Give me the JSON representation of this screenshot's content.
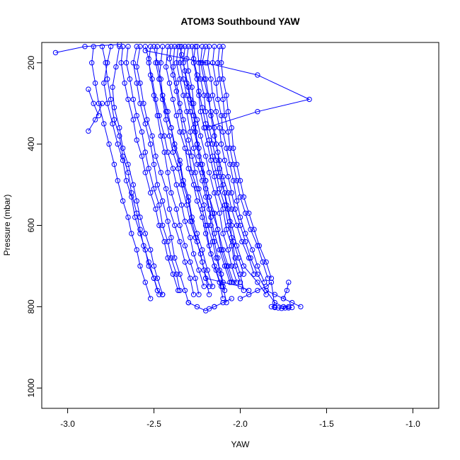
{
  "chart_data": {
    "type": "scatter",
    "title": "ATOM3 Southbound YAW",
    "xlabel": "YAW",
    "ylabel": "Pressure (mbar)",
    "xlim": [
      -3.15,
      -0.85
    ],
    "ylim": [
      1050,
      150
    ],
    "y_reversed": true,
    "x_ticks": [
      -3.0,
      -2.5,
      -2.0,
      -1.5,
      -1.0
    ],
    "x_tick_labels": [
      "-3.0",
      "-2.5",
      "-2.0",
      "-1.5",
      "-1.0"
    ],
    "y_ticks": [
      200,
      400,
      600,
      800,
      1000
    ],
    "y_tick_labels": [
      "200",
      "400",
      "600",
      "800",
      "1000"
    ],
    "grid": false,
    "legend": "none",
    "marker": "open-circle",
    "connect_points": true,
    "colors": {
      "series": "#0000ff",
      "axes": "#000000"
    },
    "series": [
      {
        "x": [
          -2.3,
          -2.31,
          -2.3,
          -2.28,
          -2.27,
          -2.26,
          -2.25,
          -2.24,
          -2.22,
          -2.2,
          -2.18,
          -2.17,
          -2.15,
          -2.13,
          -2.12,
          -2.1,
          -2.08
        ],
        "y": [
          160,
          190,
          220,
          260,
          300,
          350,
          400,
          430,
          470,
          510,
          560,
          600,
          640,
          680,
          710,
          750,
          790
        ]
      },
      {
        "x": [
          -2.5,
          -2.48,
          -2.46,
          -2.45,
          -2.43,
          -2.4,
          -2.38,
          -2.35,
          -2.33,
          -2.3,
          -2.28,
          -2.25,
          -2.22,
          -2.2,
          -2.18
        ],
        "y": [
          160,
          200,
          240,
          280,
          320,
          360,
          410,
          450,
          500,
          540,
          590,
          640,
          690,
          730,
          770
        ]
      },
      {
        "x": [
          -2.6,
          -2.62,
          -2.6,
          -2.58,
          -2.55,
          -2.52,
          -2.5,
          -2.48,
          -2.45,
          -2.42,
          -2.4,
          -2.38,
          -2.35,
          -2.32,
          -2.3
        ],
        "y": [
          160,
          200,
          250,
          300,
          350,
          400,
          450,
          500,
          540,
          590,
          630,
          680,
          720,
          760,
          790
        ]
      },
      {
        "x": [
          -2.4,
          -2.41,
          -2.39,
          -2.37,
          -2.35,
          -2.33,
          -2.3,
          -2.28,
          -2.25,
          -2.22,
          -2.2,
          -2.18,
          -2.15,
          -2.12,
          -2.1
        ],
        "y": [
          160,
          190,
          230,
          270,
          320,
          370,
          420,
          470,
          510,
          560,
          600,
          650,
          700,
          740,
          780
        ]
      },
      {
        "x": [
          -2.2,
          -2.22,
          -2.2,
          -2.18,
          -2.17,
          -2.15,
          -2.13,
          -2.12,
          -2.1,
          -2.08,
          -2.06,
          -2.05,
          -2.03,
          -2.0,
          -1.98
        ],
        "y": [
          160,
          200,
          240,
          290,
          330,
          380,
          420,
          460,
          500,
          550,
          590,
          630,
          680,
          720,
          760
        ]
      },
      {
        "x": [
          -2.7,
          -2.72,
          -2.74,
          -2.73,
          -2.7,
          -2.68,
          -2.65,
          -2.62,
          -2.6,
          -2.58,
          -2.55,
          -2.52,
          -2.5,
          -2.48,
          -2.45
        ],
        "y": [
          160,
          210,
          260,
          310,
          360,
          410,
          450,
          500,
          540,
          580,
          620,
          660,
          700,
          730,
          770
        ]
      },
      {
        "x": [
          -2.35,
          -2.34,
          -2.32,
          -2.3,
          -2.28,
          -2.25,
          -2.23,
          -2.2,
          -2.18,
          -2.15,
          -2.12,
          -2.1,
          -2.07,
          -2.05,
          -2.02
        ],
        "y": [
          160,
          180,
          220,
          260,
          300,
          340,
          380,
          430,
          470,
          520,
          570,
          620,
          660,
          700,
          740
        ]
      },
      {
        "x": [
          -2.28,
          -2.27,
          -2.25,
          -2.24,
          -2.23,
          -2.21,
          -2.19,
          -2.17,
          -2.15,
          -2.13,
          -2.1,
          -2.08,
          -2.05,
          -2.03,
          -2.0
        ],
        "y": [
          160,
          200,
          240,
          280,
          320,
          360,
          400,
          440,
          480,
          520,
          560,
          610,
          650,
          700,
          740
        ]
      },
      {
        "x": [
          -2.55,
          -2.53,
          -2.52,
          -2.5,
          -2.48,
          -2.46,
          -2.44,
          -2.42,
          -2.4,
          -2.37,
          -2.35,
          -2.32,
          -2.29,
          -2.26,
          -2.24
        ],
        "y": [
          160,
          190,
          230,
          280,
          330,
          380,
          420,
          470,
          520,
          560,
          600,
          650,
          690,
          730,
          770
        ]
      },
      {
        "x": [
          -2.45,
          -2.46,
          -2.47,
          -2.45,
          -2.43,
          -2.41,
          -2.39,
          -2.36,
          -2.34,
          -2.31,
          -2.29,
          -2.26,
          -2.23,
          -2.21,
          -2.18
        ],
        "y": [
          160,
          200,
          240,
          290,
          340,
          380,
          420,
          460,
          500,
          550,
          590,
          630,
          670,
          710,
          750
        ]
      },
      {
        "x": [
          -2.25,
          -2.24,
          -2.23,
          -2.21,
          -2.2,
          -2.18,
          -2.16,
          -2.14,
          -2.12,
          -2.09,
          -2.07,
          -2.05,
          -2.02,
          -1.98,
          -1.9,
          -1.85
        ],
        "y": [
          160,
          200,
          240,
          280,
          320,
          360,
          400,
          440,
          480,
          520,
          560,
          600,
          650,
          700,
          740,
          770
        ]
      },
      {
        "x": [
          -2.65,
          -2.66,
          -2.64,
          -2.62,
          -2.6,
          -2.57,
          -2.55,
          -2.53,
          -2.5,
          -2.47,
          -2.45,
          -2.42,
          -2.4,
          -2.37,
          -2.35
        ],
        "y": [
          160,
          200,
          240,
          290,
          330,
          370,
          420,
          460,
          510,
          550,
          600,
          640,
          680,
          720,
          760
        ]
      },
      {
        "x": [
          -2.32,
          -2.33,
          -2.31,
          -2.29,
          -2.27,
          -2.26,
          -2.24,
          -2.22,
          -2.2,
          -2.18,
          -2.16,
          -2.13,
          -2.11,
          -2.08,
          -2.05
        ],
        "y": [
          160,
          200,
          250,
          290,
          330,
          370,
          410,
          450,
          490,
          530,
          570,
          610,
          660,
          700,
          740
        ]
      },
      {
        "x": [
          -2.8,
          -2.78,
          -2.77,
          -2.75,
          -2.73,
          -2.7,
          -2.68,
          -2.65,
          -2.63,
          -2.6,
          -2.58,
          -2.56,
          -2.53,
          -2.5,
          -2.47
        ],
        "y": [
          160,
          200,
          240,
          290,
          340,
          380,
          430,
          470,
          520,
          570,
          610,
          650,
          690,
          730,
          770
        ]
      },
      {
        "x": [
          -2.18,
          -2.19,
          -2.17,
          -2.16,
          -2.14,
          -2.12,
          -2.11,
          -2.09,
          -2.07,
          -2.05,
          -2.03,
          -2.0,
          -1.97,
          -1.94,
          -1.9,
          -1.85,
          -1.8,
          -1.75,
          -1.72
        ],
        "y": [
          160,
          200,
          240,
          280,
          320,
          360,
          400,
          440,
          480,
          520,
          560,
          600,
          640,
          680,
          720,
          760,
          790,
          800,
          800
        ]
      },
      {
        "x": [
          -2.38,
          -2.39,
          -2.37,
          -2.35,
          -2.33,
          -2.3,
          -2.28,
          -2.26,
          -2.24,
          -2.21,
          -2.19,
          -2.16,
          -2.14,
          -2.11,
          -2.09
        ],
        "y": [
          160,
          210,
          250,
          300,
          340,
          390,
          430,
          470,
          510,
          550,
          600,
          640,
          680,
          720,
          760
        ]
      },
      {
        "x": [
          -2.15,
          -2.16,
          -2.14,
          -2.13,
          -2.11,
          -2.1,
          -2.08,
          -2.06,
          -2.04,
          -2.02,
          -2.0,
          -1.97,
          -1.93,
          -1.9,
          -1.86
        ],
        "y": [
          160,
          200,
          250,
          290,
          330,
          370,
          410,
          450,
          490,
          540,
          580,
          620,
          660,
          700,
          740
        ]
      },
      {
        "x": [
          -2.75,
          -2.77,
          -2.79,
          -2.77,
          -2.74,
          -2.71,
          -2.68,
          -2.66,
          -2.63,
          -2.61,
          -2.58,
          -2.55,
          -2.53,
          -2.5,
          -2.48,
          -2.45
        ],
        "y": [
          160,
          200,
          250,
          300,
          350,
          400,
          440,
          490,
          530,
          580,
          620,
          660,
          700,
          730,
          760,
          770
        ]
      },
      {
        "x": [
          -2.48,
          -2.49,
          -2.47,
          -2.45,
          -2.42,
          -2.4,
          -2.38,
          -2.35,
          -2.33,
          -2.3,
          -2.28,
          -2.25,
          -2.22,
          -2.19,
          -2.16
        ],
        "y": [
          160,
          200,
          240,
          280,
          320,
          360,
          400,
          440,
          490,
          530,
          580,
          620,
          660,
          710,
          750
        ]
      },
      {
        "x": [
          -2.22,
          -2.23,
          -2.21,
          -2.19,
          -2.17,
          -2.15,
          -2.14,
          -2.12,
          -2.1,
          -2.07,
          -2.05,
          -2.02,
          -1.99,
          -1.95,
          -1.92
        ],
        "y": [
          160,
          200,
          240,
          280,
          320,
          360,
          400,
          440,
          480,
          520,
          560,
          600,
          640,
          680,
          720
        ]
      },
      {
        "x": [
          -2.58,
          -2.6,
          -2.58,
          -2.56,
          -2.54,
          -2.51,
          -2.49,
          -2.46,
          -2.43,
          -2.41,
          -2.38,
          -2.35,
          -2.32,
          -2.29,
          -2.27
        ],
        "y": [
          160,
          210,
          250,
          300,
          340,
          380,
          430,
          470,
          510,
          560,
          600,
          640,
          690,
          730,
          770
        ]
      },
      {
        "x": [
          -2.36,
          -2.37,
          -2.35,
          -2.33,
          -2.31,
          -2.29,
          -2.27,
          -2.25,
          -2.22,
          -2.2,
          -2.17,
          -2.15,
          -2.12,
          -2.09,
          -2.06
        ],
        "y": [
          160,
          200,
          240,
          280,
          320,
          370,
          410,
          450,
          490,
          530,
          580,
          620,
          660,
          700,
          740
        ]
      },
      {
        "x": [
          -2.12,
          -2.13,
          -2.12,
          -2.1,
          -2.09,
          -2.07,
          -2.06,
          -2.04,
          -2.02,
          -2.0,
          -1.97,
          -1.94,
          -1.9,
          -1.87,
          -1.84
        ],
        "y": [
          160,
          200,
          240,
          290,
          330,
          370,
          410,
          450,
          490,
          530,
          570,
          610,
          650,
          690,
          730
        ]
      },
      {
        "x": [
          -2.68,
          -2.69,
          -2.67,
          -2.65,
          -2.62,
          -2.6,
          -2.57,
          -2.55,
          -2.52,
          -2.49,
          -2.47,
          -2.44,
          -2.42,
          -2.39,
          -2.36
        ],
        "y": [
          160,
          200,
          250,
          290,
          340,
          390,
          430,
          470,
          520,
          560,
          600,
          640,
          680,
          720,
          760
        ]
      },
      {
        "x": [
          -2.42,
          -2.43,
          -2.41,
          -2.39,
          -2.37,
          -2.35,
          -2.32,
          -2.3,
          -2.27,
          -2.25,
          -2.22,
          -2.2,
          -2.17,
          -2.14,
          -2.11
        ],
        "y": [
          160,
          210,
          250,
          290,
          330,
          370,
          410,
          460,
          500,
          540,
          580,
          620,
          670,
          710,
          750
        ]
      },
      {
        "x": [
          -2.26,
          -2.27,
          -2.25,
          -2.24,
          -2.22,
          -2.2,
          -2.18,
          -2.16,
          -2.14,
          -2.12,
          -2.09,
          -2.07,
          -2.04,
          -2.01,
          -1.98
        ],
        "y": [
          160,
          190,
          230,
          270,
          310,
          350,
          390,
          430,
          470,
          510,
          550,
          600,
          640,
          680,
          720
        ]
      },
      {
        "x": [
          -2.85,
          -2.86,
          -2.84,
          -2.82,
          -2.79,
          -2.76,
          -2.73,
          -2.71,
          -2.68,
          -2.65,
          -2.63,
          -2.6,
          -2.58,
          -2.55,
          -2.52
        ],
        "y": [
          160,
          200,
          250,
          300,
          350,
          400,
          450,
          490,
          540,
          580,
          620,
          660,
          700,
          740,
          780
        ]
      },
      {
        "x": [
          -2.52,
          -2.53,
          -2.51,
          -2.49,
          -2.47,
          -2.44,
          -2.42,
          -2.39,
          -2.37,
          -2.34,
          -2.32,
          -2.29,
          -2.27,
          -2.24,
          -2.21
        ],
        "y": [
          160,
          200,
          240,
          290,
          330,
          380,
          420,
          460,
          500,
          550,
          590,
          630,
          670,
          710,
          750
        ]
      },
      {
        "x": [
          -2.34,
          -2.35,
          -2.33,
          -2.31,
          -2.29,
          -2.27,
          -2.25,
          -2.23,
          -2.2,
          -2.18,
          -2.15,
          -2.13,
          -2.1,
          -2.07,
          -2.04
        ],
        "y": [
          160,
          200,
          240,
          280,
          320,
          360,
          400,
          450,
          490,
          530,
          570,
          610,
          660,
          700,
          740
        ]
      },
      {
        "x": [
          -2.1,
          -2.11,
          -2.1,
          -2.08,
          -2.07,
          -2.05,
          -2.04,
          -2.02,
          -2.0,
          -1.98,
          -1.95,
          -1.92,
          -1.89,
          -1.85,
          -1.82
        ],
        "y": [
          160,
          200,
          240,
          280,
          320,
          360,
          410,
          450,
          490,
          530,
          570,
          610,
          650,
          690,
          730
        ]
      },
      {
        "x": [
          -3.07,
          -2.9,
          -2.7
        ],
        "y": [
          175,
          160,
          155
        ]
      },
      {
        "x": [
          -2.55,
          -2.2,
          -1.9,
          -1.6,
          -1.9,
          -2.2
        ],
        "y": [
          170,
          200,
          230,
          290,
          320,
          360
        ]
      },
      {
        "x": [
          -2.88,
          -2.85,
          -2.82
        ],
        "y": [
          265,
          300,
          330
        ]
      },
      {
        "x": [
          -2.88,
          -2.84,
          -2.8
        ],
        "y": [
          368,
          340,
          300
        ]
      },
      {
        "x": [
          -2.05,
          -2.1,
          -2.15
        ],
        "y": [
          780,
          790,
          800
        ]
      },
      {
        "x": [
          -2.3,
          -2.25,
          -2.2,
          -2.18,
          -2.15
        ],
        "y": [
          790,
          800,
          810,
          805,
          800
        ]
      },
      {
        "x": [
          -1.82,
          -1.8,
          -1.78,
          -1.76,
          -1.74,
          -1.72,
          -1.7
        ],
        "y": [
          800,
          802,
          803,
          804,
          803,
          803,
          802
        ]
      },
      {
        "x": [
          -1.85,
          -1.8,
          -1.75,
          -1.7,
          -1.65
        ],
        "y": [
          760,
          770,
          780,
          790,
          800
        ]
      },
      {
        "x": [
          -2.0,
          -1.95,
          -1.9,
          -1.85,
          -1.82,
          -1.8
        ],
        "y": [
          780,
          770,
          760,
          750,
          740,
          800
        ]
      },
      {
        "x": [
          -2.2,
          -2.1,
          -2.0,
          -1.95
        ],
        "y": [
          730,
          740,
          750,
          760
        ]
      },
      {
        "x": [
          -1.72,
          -1.73,
          -1.75
        ],
        "y": [
          740,
          760,
          780
        ]
      }
    ]
  }
}
